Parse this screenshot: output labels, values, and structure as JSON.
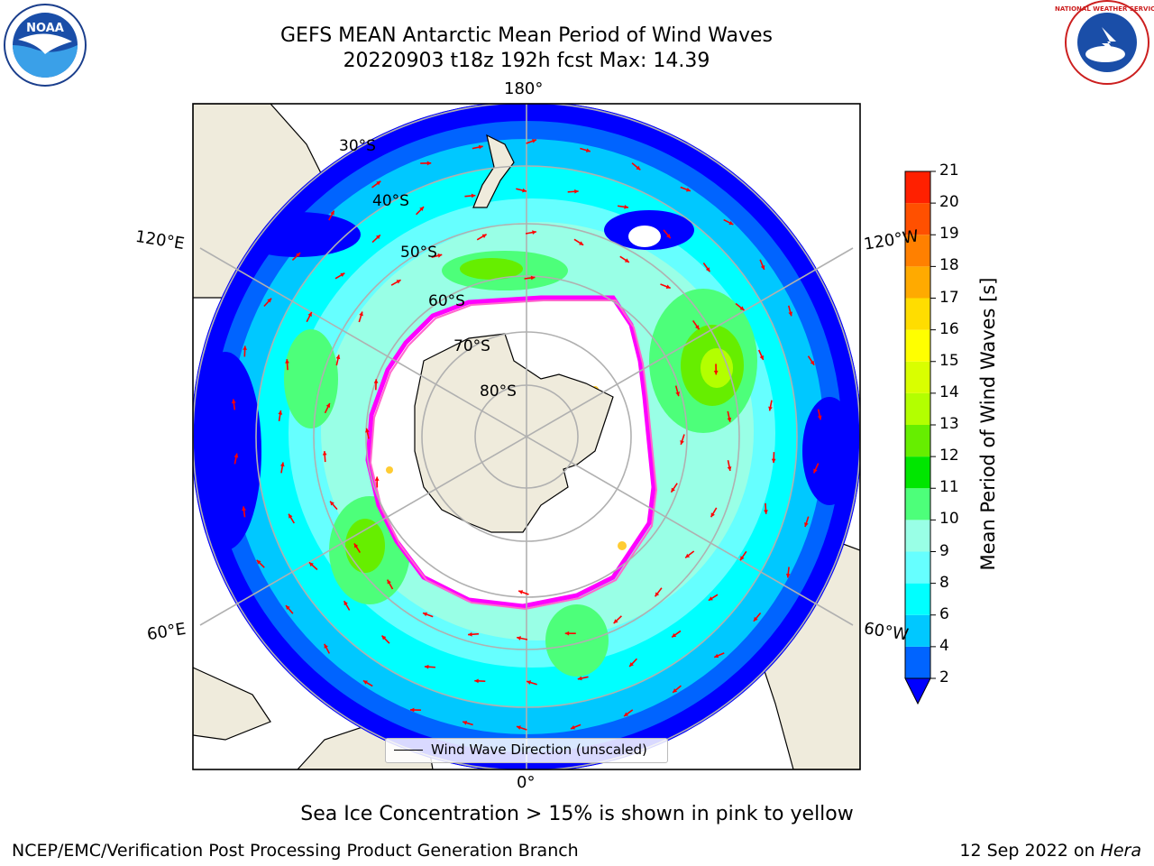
{
  "header": {
    "title_line1": "GEFS MEAN Antarctic Mean Period of Wind Waves",
    "title_line2": "20220903 t18z 192h fcst   Max: 14.39"
  },
  "logos": {
    "left": {
      "name": "noaa-logo",
      "text": "NOAA"
    },
    "right": {
      "name": "nws-logo",
      "text": "NATIONAL WEATHER SERVICE"
    }
  },
  "map": {
    "projection": "south-polar-stereographic",
    "lon_labels": {
      "top": "180°",
      "bottom": "0°",
      "upper_left": "120°E",
      "lower_left": "60°E",
      "upper_right": "120°W",
      "lower_right": "60°W"
    },
    "lat_labels": [
      "30°S",
      "40°S",
      "50°S",
      "60°S",
      "70°S",
      "80°S"
    ],
    "legend": {
      "text": "Wind Wave Direction (unscaled)"
    },
    "arrow_color": "#ff0000",
    "ice_edge_colors": [
      "#ff00ff",
      "#ff66cc",
      "#ffcc33"
    ]
  },
  "colorbar": {
    "label": "Mean Period of Wind Waves [s]",
    "ticks": [
      "2",
      "4",
      "6",
      "8",
      "9",
      "10",
      "11",
      "12",
      "13",
      "14",
      "15",
      "16",
      "17",
      "18",
      "19",
      "20",
      "21"
    ],
    "colors": [
      "#0000ff",
      "#0064ff",
      "#00c8ff",
      "#00ffff",
      "#66ffff",
      "#99ffe6",
      "#4dff7a",
      "#00e600",
      "#66ee00",
      "#b3ff00",
      "#d9ff00",
      "#ffff00",
      "#ffdd00",
      "#ffaa00",
      "#ff8000",
      "#ff5000",
      "#ff2000",
      "#ff0000"
    ]
  },
  "footer": {
    "caption": "Sea Ice Concentration > 15% is shown in pink to yellow",
    "left": "NCEP/EMC/Verification Post Processing Product Generation Branch",
    "right_date": "12 Sep 2022 on ",
    "right_host": "Hera"
  }
}
